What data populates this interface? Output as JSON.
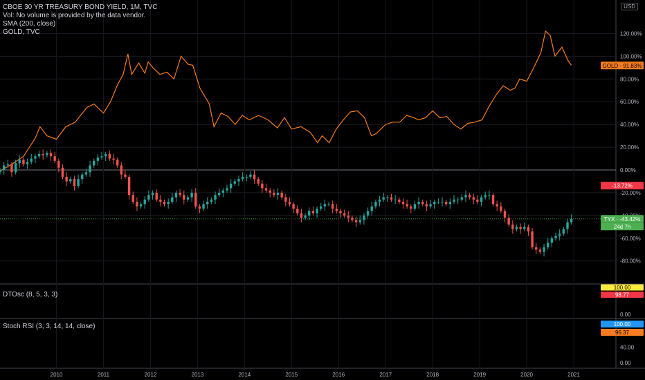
{
  "legend": {
    "title": "CBOE 30 YR TREASURY BOND YIELD, 1M, TVC",
    "vol": "Vol: No volume is provided by the data vendor.",
    "sma": "SMA (200, close)",
    "gold": "GOLD, TVC",
    "dtosc": "DTOsc (8, 5, 3, 3)",
    "stoch": "Stoch RSI (3, 3, 14, 14, close)"
  },
  "currency": "USD",
  "colors": {
    "background": "#000000",
    "up": "#26a69a",
    "down": "#ef5350",
    "gold_line": "#f57c20",
    "tyx_label": "#4caf50",
    "neg_label": "#f23645",
    "yellow_label": "#ffeb3b",
    "blue_label": "#2196f3",
    "orange_label": "#f57c20"
  },
  "chart_data": [
    {
      "type": "line",
      "title": "CBOE 30 YR TREASURY BOND YIELD, 1M, TVC",
      "yaxis_unit": "percent change",
      "yticks": [
        "120.00%",
        "100.00%",
        "80.00%",
        "60.00%",
        "40.00%",
        "20.00%",
        "0.00%",
        "-20.00%",
        "-40.00%",
        "-60.00%",
        "-80.00%"
      ],
      "ylim": [
        -95,
        132
      ],
      "xticks": [
        "2010",
        "2011",
        "2012",
        "2013",
        "2014",
        "2015",
        "2016",
        "2017",
        "2018",
        "2019",
        "2020",
        "2021"
      ],
      "series": [
        {
          "name": "GOLD",
          "kind": "line",
          "last_label": "GOLD · 91.83%",
          "points": [
            [
              2009.0,
              -1
            ],
            [
              2009.25,
              5
            ],
            [
              2009.5,
              12
            ],
            [
              2009.75,
              28
            ],
            [
              2009.85,
              38
            ],
            [
              2010.0,
              30
            ],
            [
              2010.2,
              27
            ],
            [
              2010.4,
              38
            ],
            [
              2010.6,
              42
            ],
            [
              2010.85,
              55
            ],
            [
              2011.0,
              58
            ],
            [
              2011.2,
              50
            ],
            [
              2011.35,
              60
            ],
            [
              2011.5,
              75
            ],
            [
              2011.62,
              84
            ],
            [
              2011.72,
              102
            ],
            [
              2011.8,
              84
            ],
            [
              2011.95,
              94
            ],
            [
              2012.08,
              85
            ],
            [
              2012.15,
              95
            ],
            [
              2012.25,
              90
            ],
            [
              2012.4,
              84
            ],
            [
              2012.55,
              86
            ],
            [
              2012.7,
              80
            ],
            [
              2012.85,
              100
            ],
            [
              2013.0,
              93
            ],
            [
              2013.1,
              92
            ],
            [
              2013.25,
              72
            ],
            [
              2013.45,
              58
            ],
            [
              2013.55,
              38
            ],
            [
              2013.7,
              50
            ],
            [
              2013.85,
              47
            ],
            [
              2014.0,
              40
            ],
            [
              2014.15,
              48
            ],
            [
              2014.3,
              44
            ],
            [
              2014.5,
              48
            ],
            [
              2014.7,
              44
            ],
            [
              2014.9,
              37
            ],
            [
              2015.05,
              46
            ],
            [
              2015.2,
              36
            ],
            [
              2015.4,
              38
            ],
            [
              2015.6,
              33
            ],
            [
              2015.75,
              24
            ],
            [
              2015.85,
              30
            ],
            [
              2016.0,
              24
            ],
            [
              2016.15,
              36
            ],
            [
              2016.3,
              44
            ],
            [
              2016.45,
              51
            ],
            [
              2016.6,
              52
            ],
            [
              2016.75,
              46
            ],
            [
              2016.9,
              30
            ],
            [
              2017.0,
              32
            ],
            [
              2017.2,
              40
            ],
            [
              2017.35,
              42
            ],
            [
              2017.5,
              42
            ],
            [
              2017.65,
              48
            ],
            [
              2017.8,
              46
            ],
            [
              2017.9,
              44
            ],
            [
              2018.05,
              46
            ],
            [
              2018.2,
              52
            ],
            [
              2018.35,
              46
            ],
            [
              2018.5,
              47
            ],
            [
              2018.65,
              40
            ],
            [
              2018.8,
              36
            ],
            [
              2018.95,
              41
            ],
            [
              2019.1,
              42
            ],
            [
              2019.25,
              44
            ],
            [
              2019.4,
              56
            ],
            [
              2019.55,
              66
            ],
            [
              2019.7,
              74
            ],
            [
              2019.85,
              70
            ],
            [
              2019.95,
              72
            ],
            [
              2020.05,
              80
            ],
            [
              2020.2,
              78
            ],
            [
              2020.35,
              90
            ],
            [
              2020.5,
              103
            ],
            [
              2020.6,
              122
            ],
            [
              2020.7,
              118
            ],
            [
              2020.8,
              100
            ],
            [
              2020.95,
              108
            ],
            [
              2021.08,
              96
            ],
            [
              2021.15,
              92
            ]
          ]
        },
        {
          "name": "TYX",
          "kind": "candlestick",
          "last_label": "TYX · -43.42%",
          "countdown": "24d 7h",
          "monthly_close_percent": [
            0,
            4,
            5,
            -2,
            6,
            9,
            5,
            7,
            10,
            12,
            14,
            13,
            15,
            12,
            8,
            2,
            -6,
            -10,
            -8,
            -14,
            -8,
            -4,
            -2,
            4,
            8,
            11,
            12,
            14,
            10,
            9,
            4,
            -4,
            -6,
            -22,
            -28,
            -32,
            -30,
            -26,
            -22,
            -20,
            -26,
            -28,
            -30,
            -28,
            -24,
            -20,
            -22,
            -26,
            -24,
            -20,
            -32,
            -34,
            -30,
            -28,
            -26,
            -22,
            -20,
            -18,
            -16,
            -12,
            -10,
            -8,
            -6,
            -6,
            -4,
            -8,
            -12,
            -16,
            -18,
            -20,
            -22,
            -20,
            -24,
            -28,
            -30,
            -34,
            -38,
            -42,
            -40,
            -36,
            -38,
            -34,
            -32,
            -30,
            -30,
            -34,
            -36,
            -38,
            -40,
            -42,
            -44,
            -46,
            -44,
            -40,
            -36,
            -32,
            -28,
            -26,
            -24,
            -24,
            -26,
            -26,
            -28,
            -30,
            -32,
            -34,
            -30,
            -28,
            -30,
            -32,
            -30,
            -28,
            -28,
            -28,
            -30,
            -28,
            -26,
            -26,
            -24,
            -22,
            -24,
            -26,
            -28,
            -24,
            -22,
            -22,
            -30,
            -32,
            -36,
            -42,
            -48,
            -52,
            -50,
            -52,
            -50,
            -54,
            -68,
            -70,
            -72,
            -68,
            -64,
            -60,
            -58,
            -56,
            -52,
            -46,
            -43
          ],
          "yaxis_labels": [
            "-13.72%"
          ]
        },
        {
          "name": "SMA (200, close)",
          "kind": "line"
        }
      ]
    },
    {
      "type": "line",
      "title": "DTOsc (8, 5, 3, 3)",
      "yticks": [
        "0.00"
      ],
      "ylim": [
        0,
        100
      ],
      "series": [
        {
          "name": "DTOsc K",
          "last_label": "100.00",
          "last_value": 100.0
        },
        {
          "name": "DTOsc D",
          "last_label": "98.77",
          "last_value": 98.77
        }
      ]
    },
    {
      "type": "line",
      "title": "Stoch RSI (3, 3, 14, 14, close)",
      "yticks": [
        "80.00",
        "40.00",
        "0.00"
      ],
      "ylim": [
        0,
        100
      ],
      "series": [
        {
          "name": "Stoch RSI K",
          "last_label": "100.00",
          "last_value": 100.0
        },
        {
          "name": "Stoch RSI D",
          "last_label": "96.37",
          "last_value": 96.37
        }
      ]
    }
  ]
}
